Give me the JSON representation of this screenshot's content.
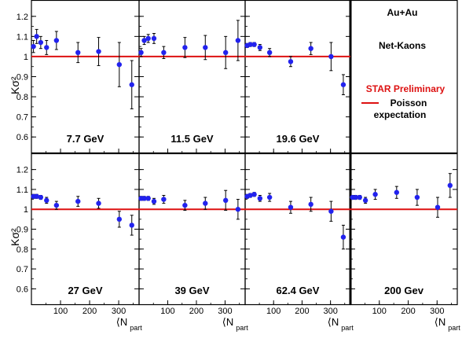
{
  "chart_data": {
    "type": "scatter",
    "ylabel": "Kσ²",
    "xlabel": "⟨N",
    "xlabel_sub": "part",
    "x_ticks": [
      100,
      200,
      300
    ],
    "y_ticks": [
      0.6,
      0.7,
      0.8,
      0.9,
      1,
      1.1,
      1.2
    ],
    "y_tick_labels": [
      "0.6",
      "0.7",
      "0.8",
      "0.9",
      "1",
      "1.1",
      "1.2"
    ],
    "xlim": [
      0,
      370
    ],
    "ylim": [
      0.55,
      1.25
    ],
    "legend": {
      "system": "Au+Au",
      "species": "Net-Kaons",
      "preliminary": "STAR Preliminary",
      "poisson_line1": "Poisson",
      "poisson_line2": "expectation"
    },
    "poisson_value": 1.0,
    "colors": {
      "points": "#2222ee",
      "poisson": "#dd1111",
      "preliminary": "#dd1111"
    },
    "panels": [
      {
        "energy": "7.7 GeV",
        "x": [
          7,
          18,
          32,
          52,
          86,
          160,
          231,
          302,
          345
        ],
        "y": [
          1.05,
          1.1,
          1.07,
          1.045,
          1.08,
          1.02,
          1.025,
          0.96,
          0.86
        ],
        "err": [
          0.03,
          0.035,
          0.03,
          0.035,
          0.045,
          0.05,
          0.07,
          0.11,
          0.12
        ]
      },
      {
        "energy": "11.5 GeV",
        "x": [
          7,
          18,
          32,
          52,
          86,
          160,
          231,
          302,
          345
        ],
        "y": [
          1.02,
          1.08,
          1.09,
          1.09,
          1.02,
          1.045,
          1.045,
          1.02,
          1.08
        ],
        "err": [
          0.02,
          0.02,
          0.02,
          0.025,
          0.03,
          0.05,
          0.06,
          0.08,
          0.1
        ]
      },
      {
        "energy": "19.6 GeV",
        "x": [
          7,
          18,
          32,
          52,
          86,
          160,
          231,
          302,
          345
        ],
        "y": [
          1.055,
          1.06,
          1.06,
          1.045,
          1.02,
          0.975,
          1.04,
          1.0,
          0.86
        ],
        "err": [
          0.01,
          0.01,
          0.01,
          0.015,
          0.02,
          0.025,
          0.03,
          0.07,
          0.05
        ]
      },
      {
        "energy": "27 GeV",
        "x": [
          7,
          18,
          32,
          52,
          86,
          160,
          231,
          302,
          345
        ],
        "y": [
          1.065,
          1.065,
          1.06,
          1.045,
          1.02,
          1.04,
          1.03,
          0.95,
          0.92
        ],
        "err": [
          0.01,
          0.01,
          0.01,
          0.015,
          0.02,
          0.025,
          0.025,
          0.04,
          0.05
        ]
      },
      {
        "energy": "39 GeV",
        "x": [
          7,
          18,
          32,
          52,
          86,
          160,
          231,
          302,
          345
        ],
        "y": [
          1.055,
          1.055,
          1.055,
          1.04,
          1.05,
          1.02,
          1.03,
          1.045,
          1.0
        ],
        "err": [
          0.01,
          0.01,
          0.01,
          0.015,
          0.02,
          0.025,
          0.03,
          0.05,
          0.05
        ]
      },
      {
        "energy": "62.4 GeV",
        "x": [
          7,
          18,
          32,
          52,
          86,
          160,
          231,
          302,
          345
        ],
        "y": [
          1.065,
          1.07,
          1.075,
          1.055,
          1.06,
          1.01,
          1.025,
          0.99,
          0.86
        ],
        "err": [
          0.01,
          0.01,
          0.01,
          0.015,
          0.02,
          0.03,
          0.035,
          0.05,
          0.06
        ]
      },
      {
        "energy": "200 Gev",
        "x": [
          7,
          18,
          32,
          52,
          86,
          160,
          231,
          302,
          345
        ],
        "y": [
          1.06,
          1.06,
          1.06,
          1.045,
          1.075,
          1.085,
          1.06,
          1.01,
          1.12
        ],
        "err": [
          0.01,
          0.01,
          0.01,
          0.015,
          0.025,
          0.03,
          0.04,
          0.05,
          0.06
        ]
      }
    ]
  }
}
